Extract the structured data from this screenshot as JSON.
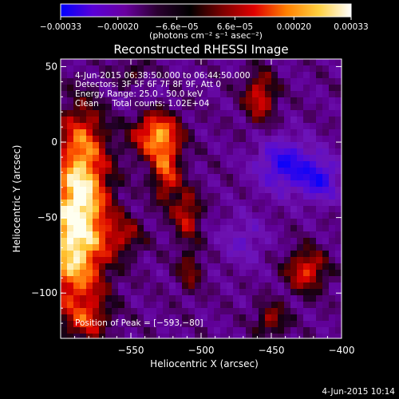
{
  "colorbar": {
    "tick_labels": [
      "−0.00033",
      "−0.00020",
      "−6.6e−05",
      "6.6e−05",
      "0.00020",
      "0.00033"
    ],
    "units_label": "(photons cm⁻² s⁻¹ asec⁻²)",
    "colors": [
      "#0000ff",
      "#5a00d8",
      "#6a00a0",
      "#2a0030",
      "#000000",
      "#7a0000",
      "#e00000",
      "#ff8000",
      "#ffd040",
      "#ffffff"
    ]
  },
  "chart_data": {
    "type": "heatmap",
    "title": "Reconstructed RHESSI Image",
    "xlabel": "Heliocentric X (arcsec)",
    "ylabel": "Heliocentric Y (arcsec)",
    "xlim": [
      -600,
      -400
    ],
    "ylim": [
      -130,
      55
    ],
    "x_ticks": [
      -550,
      -500,
      -450,
      -400
    ],
    "y_ticks": [
      50,
      0,
      -50,
      -100
    ],
    "x_tick_labels": [
      "−550",
      "−500",
      "−450",
      "−400"
    ],
    "y_tick_labels": [
      "50",
      "0",
      "−50",
      "−100"
    ],
    "annotations": [
      "4-Jun-2015 06:38:50.000 to 06:44:50.000",
      "Detectors: 3F 5F 6F 7F 8F 9F, Att 0",
      "Energy Range: 25.0 - 50.0 keV",
      "Clean     Total counts: 1.02E+04",
      "Position of Peak = [−593,−80]"
    ],
    "peak": {
      "x": -593,
      "y": -80
    },
    "value_range": [
      -0.00033,
      0.00033
    ],
    "sources": [
      {
        "x": -590,
        "y": -72,
        "sx": 16,
        "sy": 30,
        "amp": 1.0
      },
      {
        "x": -585,
        "y": -30,
        "sx": 14,
        "sy": 22,
        "amp": 0.7
      },
      {
        "x": -585,
        "y": 5,
        "sx": 12,
        "sy": 18,
        "amp": 0.5
      },
      {
        "x": -532,
        "y": 5,
        "sx": 12,
        "sy": 11,
        "amp": 0.85
      },
      {
        "x": -525,
        "y": -20,
        "sx": 7,
        "sy": 14,
        "amp": 0.65
      },
      {
        "x": -510,
        "y": -48,
        "sx": 7,
        "sy": 12,
        "amp": 0.55
      },
      {
        "x": -508,
        "y": -85,
        "sx": 6,
        "sy": 10,
        "amp": 0.4
      },
      {
        "x": -555,
        "y": -62,
        "sx": 10,
        "sy": 9,
        "amp": 0.4
      },
      {
        "x": -458,
        "y": 30,
        "sx": 8,
        "sy": 12,
        "amp": 0.6
      },
      {
        "x": -425,
        "y": -85,
        "sx": 10,
        "sy": 10,
        "amp": 0.65
      },
      {
        "x": -450,
        "y": -118,
        "sx": 8,
        "sy": 8,
        "amp": 0.45
      },
      {
        "x": -580,
        "y": -118,
        "sx": 10,
        "sy": 9,
        "amp": 0.4
      },
      {
        "x": -548,
        "y": 45,
        "sx": 8,
        "sy": 7,
        "amp": 0.3
      },
      {
        "x": -440,
        "y": -15,
        "sx": 14,
        "sy": 12,
        "amp": -0.7
      },
      {
        "x": -415,
        "y": -25,
        "sx": 10,
        "sy": 10,
        "amp": -0.6
      },
      {
        "x": -470,
        "y": -65,
        "sx": 12,
        "sy": 12,
        "amp": -0.3
      },
      {
        "x": -545,
        "y": 30,
        "sx": 12,
        "sy": 8,
        "amp": -0.15
      }
    ]
  },
  "timestamp": "4-Jun-2015 10:14"
}
